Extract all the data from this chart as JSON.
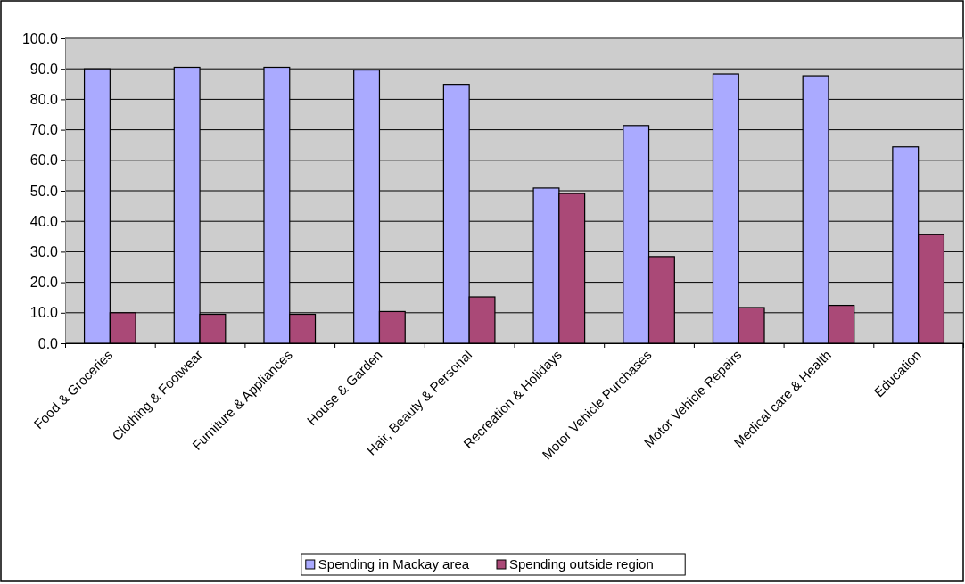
{
  "chart_data": {
    "type": "bar",
    "categories": [
      "Food & Groceries",
      "Clothing & Footwear",
      "Furniture & Appliances",
      "House & Garden",
      "Hair, Beauty & Personal",
      "Recreation & Holidays",
      "Motor Vehicle Purchases",
      "Motor Vehicle Repairs",
      "Medical care & Health",
      "Education"
    ],
    "series": [
      {
        "name": "Spending in Mackay area",
        "color": "#aaaaff",
        "values": [
          90.0,
          90.5,
          90.5,
          89.6,
          84.9,
          50.9,
          71.4,
          88.3,
          87.7,
          64.4
        ]
      },
      {
        "name": "Spending outside region",
        "color": "#aa4977",
        "values": [
          10.0,
          9.5,
          9.5,
          10.4,
          15.2,
          49.1,
          28.4,
          11.7,
          12.4,
          35.6
        ]
      }
    ],
    "ylim": [
      0,
      100
    ],
    "yticks": [
      {
        "value": 0,
        "label": "0.0"
      },
      {
        "value": 10,
        "label": "10.0"
      },
      {
        "value": 20,
        "label": "20.0"
      },
      {
        "value": 30,
        "label": "30.0"
      },
      {
        "value": 40,
        "label": "40.0"
      },
      {
        "value": 50,
        "label": "50.0"
      },
      {
        "value": 60,
        "label": "60.0"
      },
      {
        "value": 70,
        "label": "70.0"
      },
      {
        "value": 80,
        "label": "80.0"
      },
      {
        "value": 90,
        "label": "90.0"
      },
      {
        "value": 100,
        "label": "100.0"
      }
    ],
    "grid": "y",
    "legend": "bottom"
  }
}
